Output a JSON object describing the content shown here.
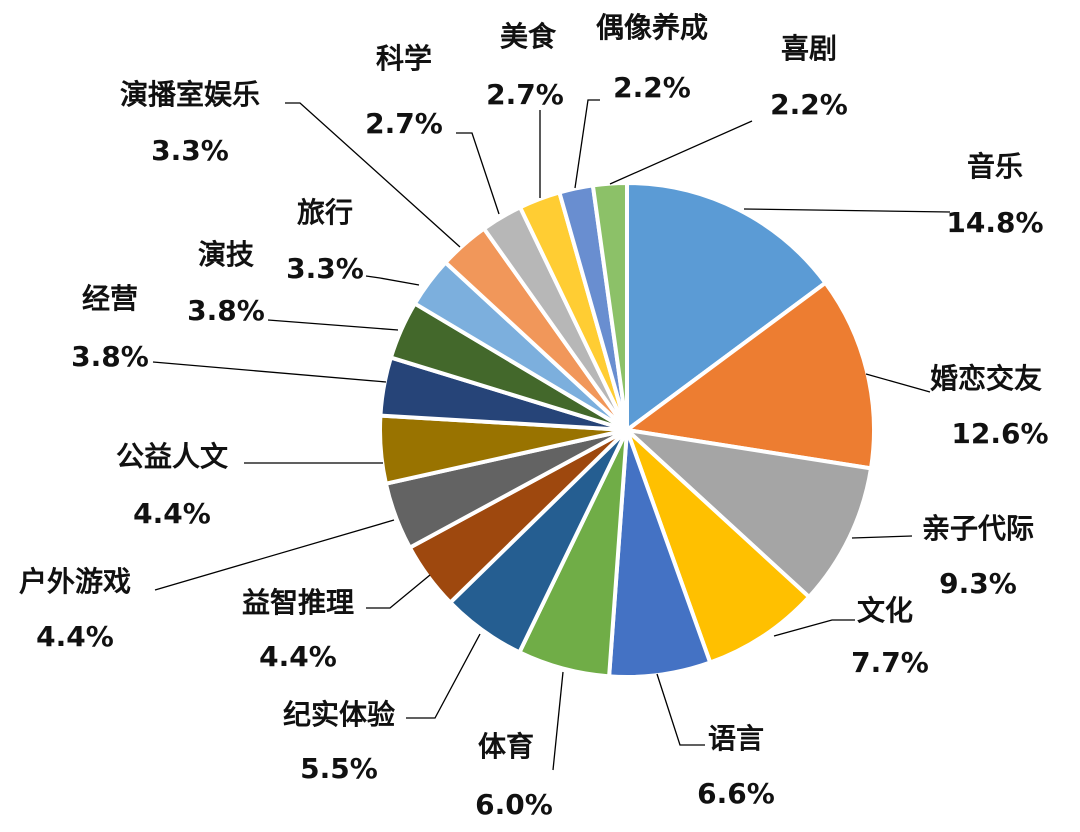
{
  "chart_data": {
    "type": "pie",
    "slices": [
      {
        "name": "音乐",
        "value": 14.8,
        "label": "14.8%",
        "color": "#5B9BD5"
      },
      {
        "name": "婚恋交友",
        "value": 12.6,
        "label": "12.6%",
        "color": "#ED7D31"
      },
      {
        "name": "亲子代际",
        "value": 9.3,
        "label": "9.3%",
        "color": "#A5A5A5"
      },
      {
        "name": "文化",
        "value": 7.7,
        "label": "7.7%",
        "color": "#FFC000"
      },
      {
        "name": "语言",
        "value": 6.6,
        "label": "6.6%",
        "color": "#4472C4"
      },
      {
        "name": "体育",
        "value": 6.0,
        "label": "6.0%",
        "color": "#70AD47"
      },
      {
        "name": "纪实体验",
        "value": 5.5,
        "label": "5.5%",
        "color": "#255E91"
      },
      {
        "name": "益智推理",
        "value": 4.4,
        "label": "4.4%",
        "color": "#9E480E"
      },
      {
        "name": "户外游戏",
        "value": 4.4,
        "label": "4.4%",
        "color": "#636363"
      },
      {
        "name": "公益人文",
        "value": 4.4,
        "label": "4.4%",
        "color": "#997300"
      },
      {
        "name": "经营",
        "value": 3.8,
        "label": "3.8%",
        "color": "#264478"
      },
      {
        "name": "演技",
        "value": 3.8,
        "label": "3.8%",
        "color": "#43682B"
      },
      {
        "name": "旅行",
        "value": 3.3,
        "label": "3.3%",
        "color": "#7CAFDD"
      },
      {
        "name": "演播室娱乐",
        "value": 3.3,
        "label": "3.3%",
        "color": "#F1975A"
      },
      {
        "name": "科学",
        "value": 2.7,
        "label": "2.7%",
        "color": "#B7B7B7"
      },
      {
        "name": "美食",
        "value": 2.7,
        "label": "2.7%",
        "color": "#FFCD33"
      },
      {
        "name": "偶像养成",
        "value": 2.2,
        "label": "2.2%",
        "color": "#698ED0"
      },
      {
        "name": "喜剧",
        "value": 2.2,
        "label": "2.2%",
        "color": "#8CC168"
      }
    ]
  }
}
